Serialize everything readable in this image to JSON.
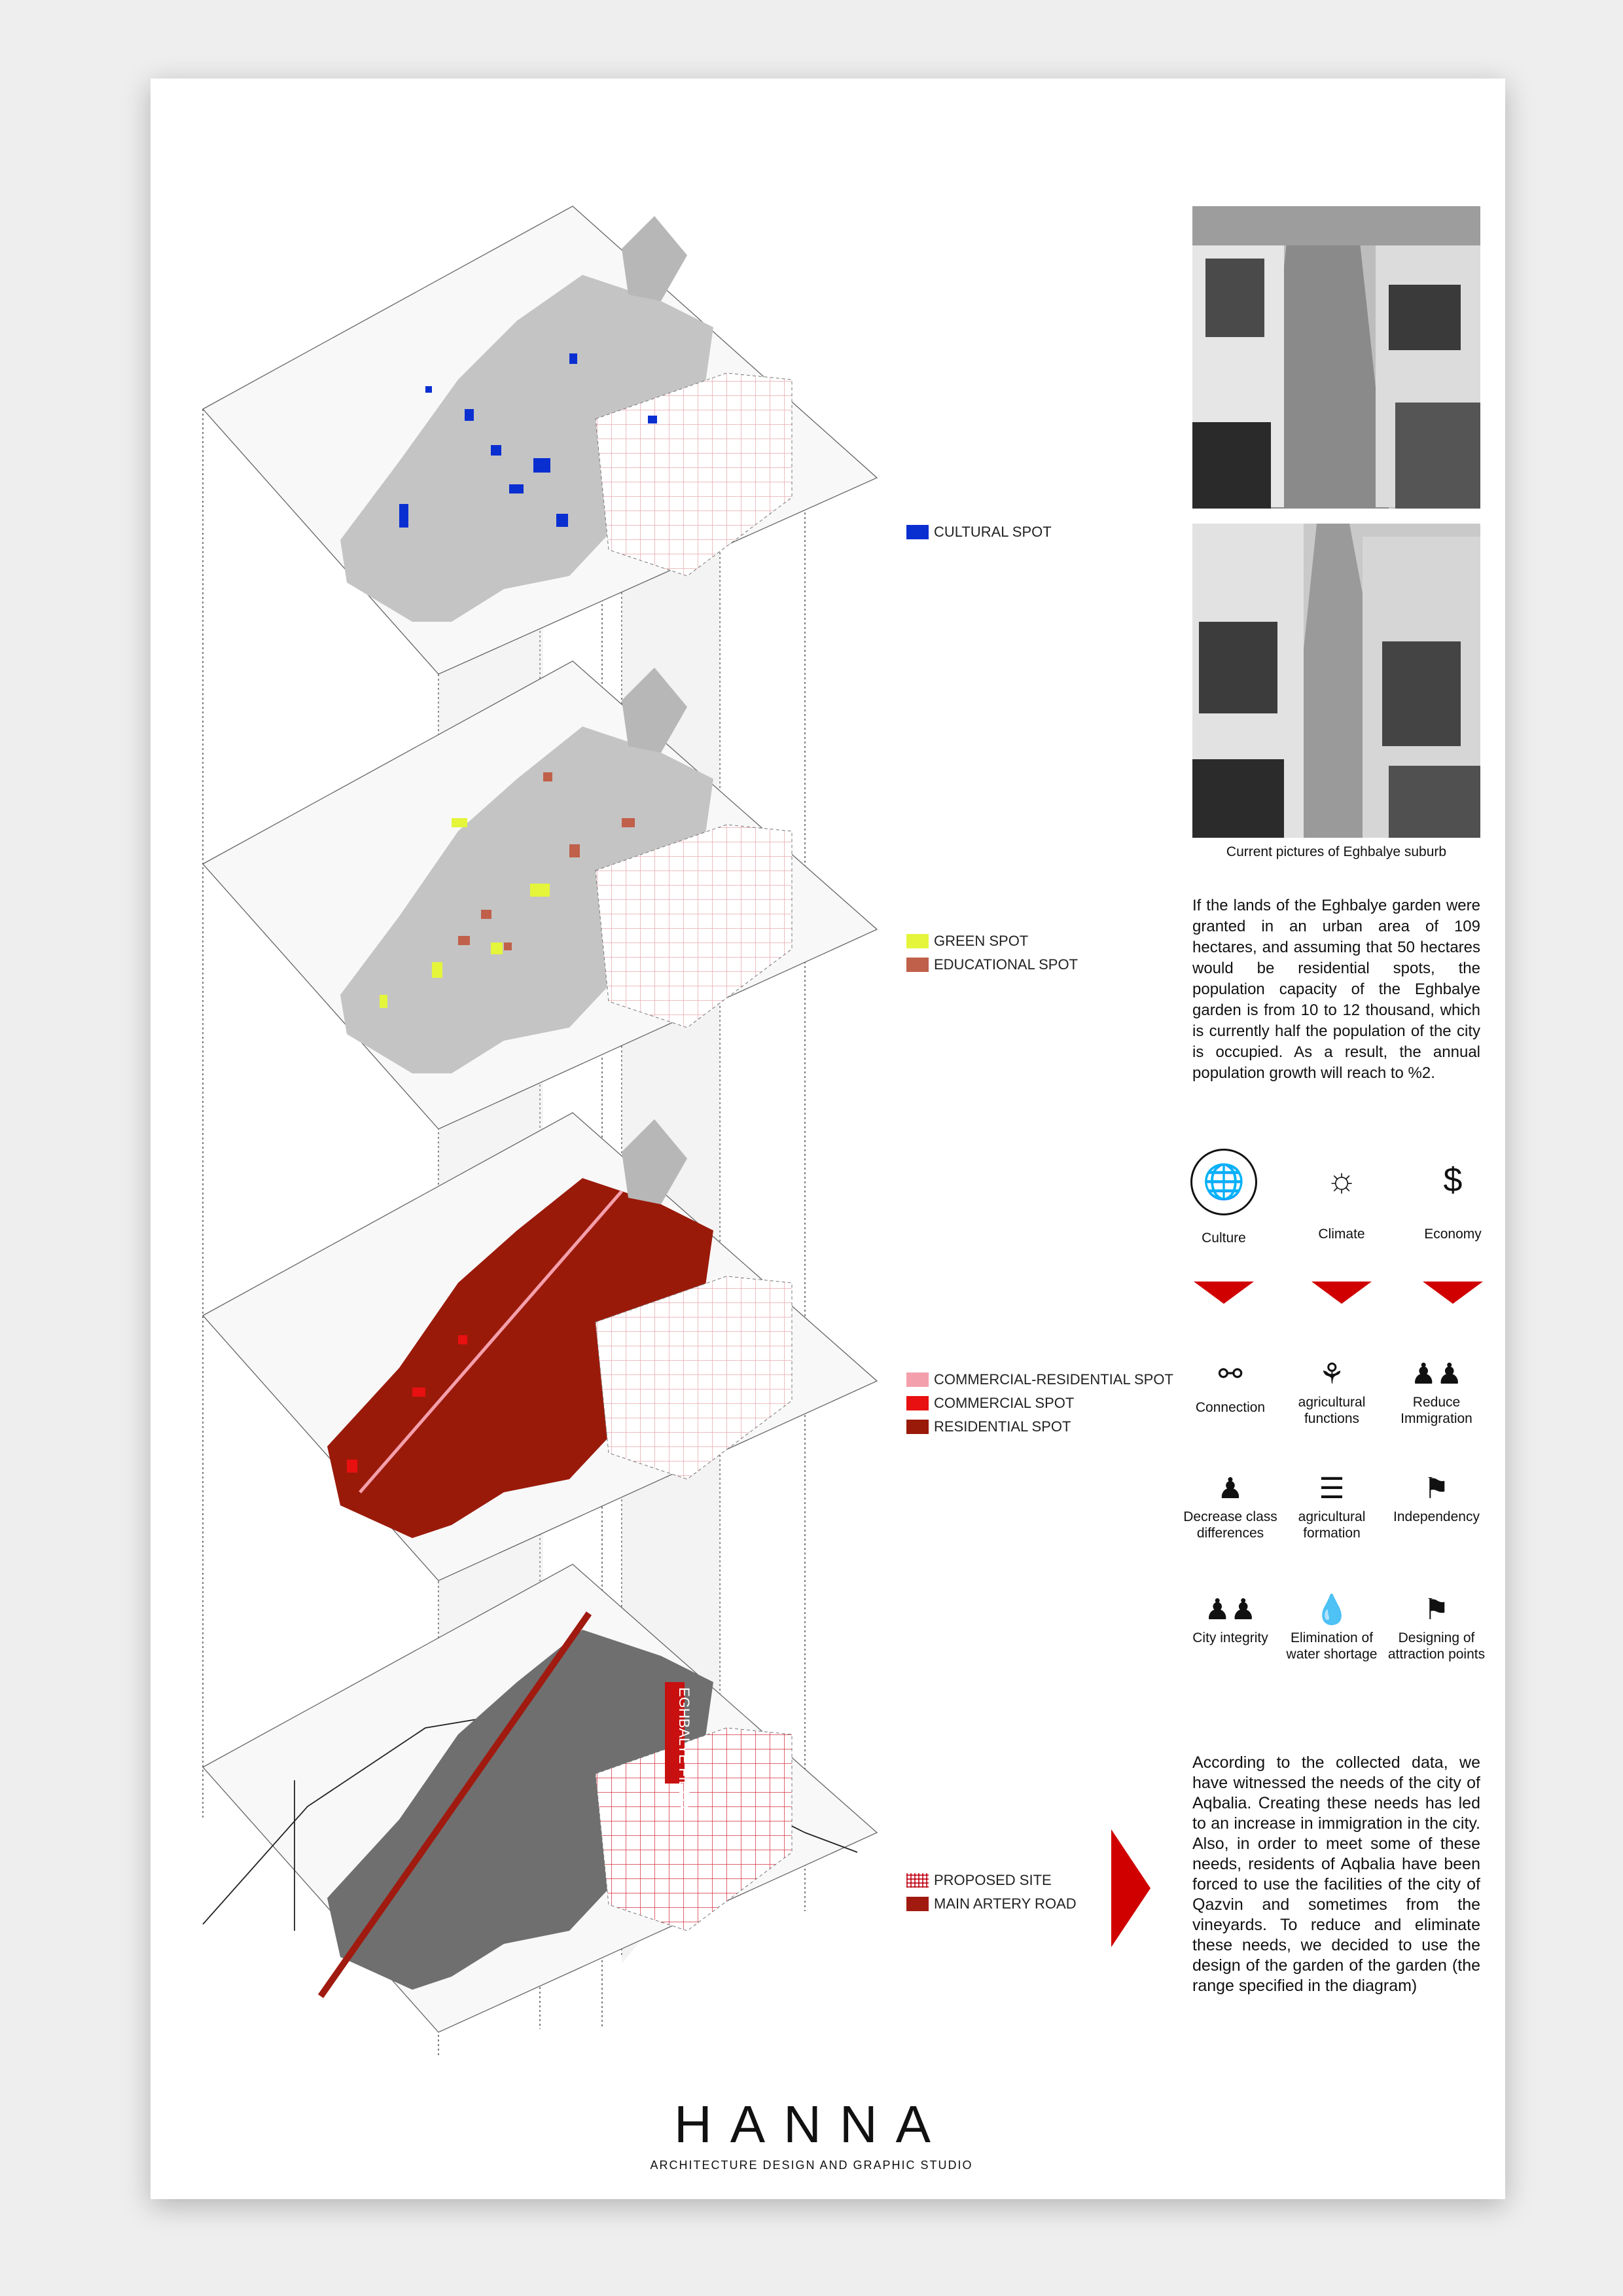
{
  "legends": {
    "cultural": "CULTURAL SPOT",
    "green": "GREEN SPOT",
    "educational": "EDUCATIONAL SPOT",
    "comres": "COMMERCIAL-RESIDENTIAL SPOT",
    "commercial": "COMMERCIAL SPOT",
    "residential": "RESIDENTIAL SPOT",
    "proposed": "PROPOSED SITE",
    "artery": "MAIN ARTERY ROAD"
  },
  "colors": {
    "cultural": "#0a2fd1",
    "green": "#e4f53a",
    "educational": "#c0604a",
    "comres": "#f4a0ac",
    "commercial": "#e81010",
    "residential": "#9a1a0a",
    "artery": "#a01a10",
    "accent": "#d10000"
  },
  "field_label": "EGHBALYE FIELD",
  "photo_caption": "Current pictures of Eghbalye suburb",
  "paragraph1": "If the lands of the Eghbalye garden were granted in an urban area of 109 hectares, and assuming that 50 hectares would be residential spots, the population capacity of the Eghbalye garden is from 10 to 12 thousand, which is currently half the population of the city is occupied. As a result, the annual population growth will reach to %2.",
  "main_icons": [
    {
      "label": "Culture",
      "icon": "globe-people-icon"
    },
    {
      "label": "Climate",
      "icon": "sun-cycle-icon"
    },
    {
      "label": "Economy",
      "icon": "person-dollar-icon"
    }
  ],
  "needs": [
    {
      "label": "Connection",
      "icon": "network-people-icon"
    },
    {
      "label": "agricultural functions",
      "icon": "farmer-icon"
    },
    {
      "label": "Reduce Immigration",
      "icon": "family-icon"
    },
    {
      "label": "Decrease class differences",
      "icon": "people-money-icon"
    },
    {
      "label": "agricultural formation",
      "icon": "field-rows-icon"
    },
    {
      "label": "Independency",
      "icon": "flag-person-icon"
    },
    {
      "label": "City integrity",
      "icon": "joined-people-icon"
    },
    {
      "label": "Elimination of water shortage",
      "icon": "water-hand-icon"
    },
    {
      "label": "Designing of attraction points",
      "icon": "landmark-pin-icon"
    }
  ],
  "paragraph2": "According to the collected data, we have witnessed the needs of the city of Aqbalia. Creating these needs has led to an increase in immigration in the city. Also, in order to meet some of these needs, residents of Aqbalia have been forced to use the facilities of the city of Qazvin and sometimes from the vineyards. To reduce and eliminate these needs, we decided to use the design of the garden of the garden (the range specified in the diagram)",
  "logo": "HANNA",
  "logo_sub": "ARCHITECTURE DESIGN AND GRAPHIC STUDIO"
}
